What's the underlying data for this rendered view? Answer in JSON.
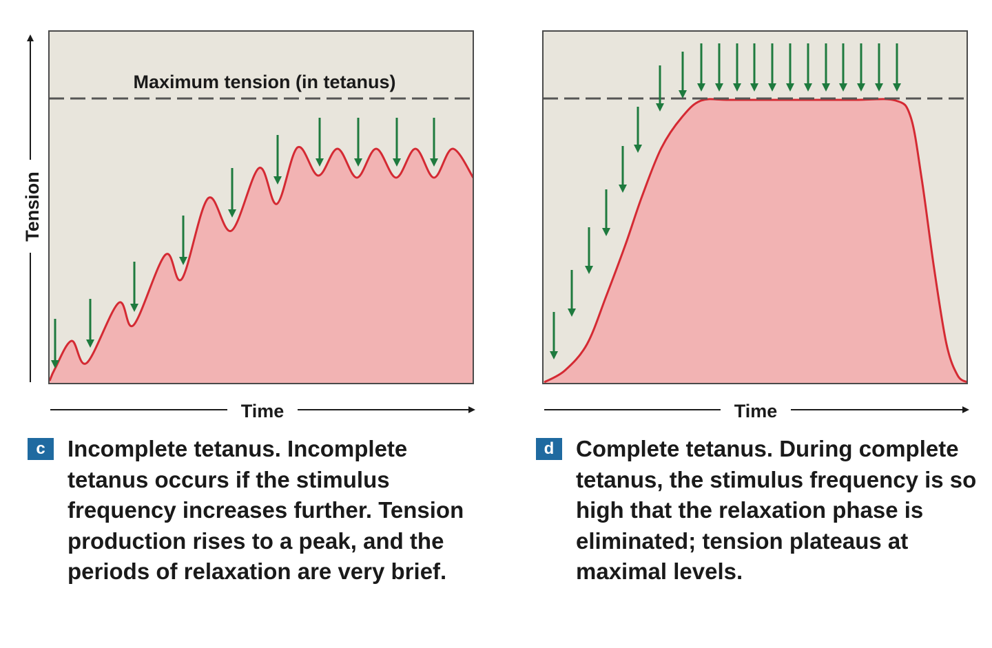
{
  "axes": {
    "y_label": "Tension",
    "x_label": "Time"
  },
  "panel_c": {
    "dashed_line_label": "Maximum tension (in tetanus)",
    "badge": "c",
    "caption": "Incomplete tetanus. Incomplete tetanus occurs if the stimulus frequency increases further. Tension production rises to a peak, and the periods of relaxation are very brief."
  },
  "panel_d": {
    "badge": "d",
    "caption": "Complete tetanus. During complete tetanus, the stimulus frequency is so high that the relaxation phase is eliminated; tension plateaus at maximal levels."
  },
  "colors": {
    "panel_bg": "#e8e5dc",
    "curve": "#d42a33",
    "fill": "#f2b3b3",
    "stimulus_arrow": "#1e7a3e",
    "dashed_line": "#555555",
    "badge": "#1f6aa0"
  },
  "icons": {
    "stimulus": "down-arrow-icon"
  }
}
